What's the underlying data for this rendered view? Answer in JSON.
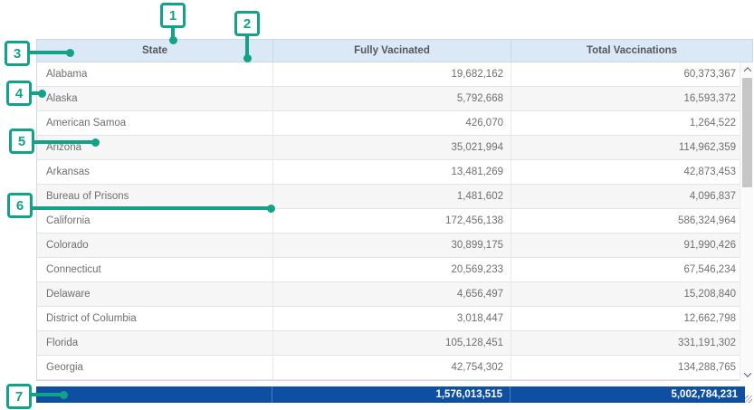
{
  "table": {
    "columns": [
      {
        "label": "State"
      },
      {
        "label": "Fully Vacinated"
      },
      {
        "label": "Total Vaccinations"
      }
    ],
    "rows": [
      {
        "state": "Alabama",
        "fully": "19,682,162",
        "total": "60,373,367"
      },
      {
        "state": "Alaska",
        "fully": "5,792,668",
        "total": "16,593,372"
      },
      {
        "state": "American Samoa",
        "fully": "426,070",
        "total": "1,264,522"
      },
      {
        "state": "Arizona",
        "fully": "35,021,994",
        "total": "114,962,359"
      },
      {
        "state": "Arkansas",
        "fully": "13,481,269",
        "total": "42,873,453"
      },
      {
        "state": "Bureau of Prisons",
        "fully": "1,481,602",
        "total": "4,096,837"
      },
      {
        "state": "California",
        "fully": "172,456,138",
        "total": "586,324,964"
      },
      {
        "state": "Colorado",
        "fully": "30,899,175",
        "total": "91,990,426"
      },
      {
        "state": "Connecticut",
        "fully": "20,569,233",
        "total": "67,546,234"
      },
      {
        "state": "Delaware",
        "fully": "4,656,497",
        "total": "15,208,840"
      },
      {
        "state": "District of Columbia",
        "fully": "3,018,447",
        "total": "12,662,798"
      },
      {
        "state": "Florida",
        "fully": "105,128,451",
        "total": "331,191,302"
      },
      {
        "state": "Georgia",
        "fully": "42,754,302",
        "total": "134,288,765"
      }
    ],
    "footer": {
      "state": "",
      "fully": "1,576,013,515",
      "total": "5,002,784,231"
    }
  },
  "callouts": [
    {
      "label": "1"
    },
    {
      "label": "2"
    },
    {
      "label": "3"
    },
    {
      "label": "4"
    },
    {
      "label": "5"
    },
    {
      "label": "6"
    },
    {
      "label": "7"
    }
  ],
  "colors": {
    "annotation_green": "#12a287",
    "header_background": "#dbe9f7",
    "footer_background": "#0d4fa2",
    "body_text": "#6e6f72",
    "header_text": "#53565a"
  }
}
